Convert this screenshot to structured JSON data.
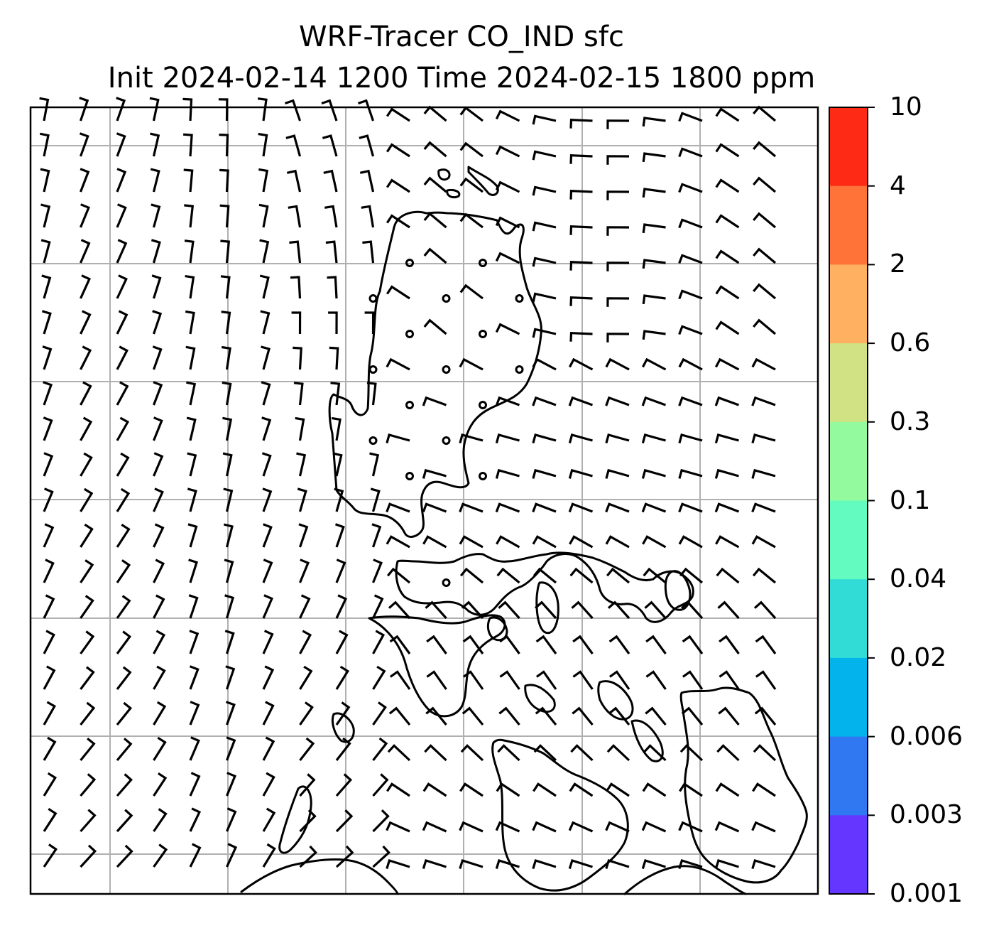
{
  "title": {
    "line1": "WRF-Tracer CO_IND sfc",
    "line2": "Init 2024-02-14 1200 Time 2024-02-15 1800 ppm"
  },
  "colorbar": {
    "labels": [
      "10",
      "4",
      "2",
      "0.6",
      "0.3",
      "0.1",
      "0.04",
      "0.02",
      "0.006",
      "0.003",
      "0.001"
    ],
    "colors_top_to_bottom": [
      "#ff2a15",
      "#ff7339",
      "#ffb161",
      "#d0e283",
      "#93fb9e",
      "#64fbc0",
      "#30dcd5",
      "#02b3ec",
      "#3078f2",
      "#6536ff"
    ]
  },
  "map": {
    "grid": "on",
    "wind_barbs": "on",
    "calm_markers": "on",
    "coastlines": "on",
    "line_color": "#000000",
    "grid_color": "#b0b0b0"
  }
}
